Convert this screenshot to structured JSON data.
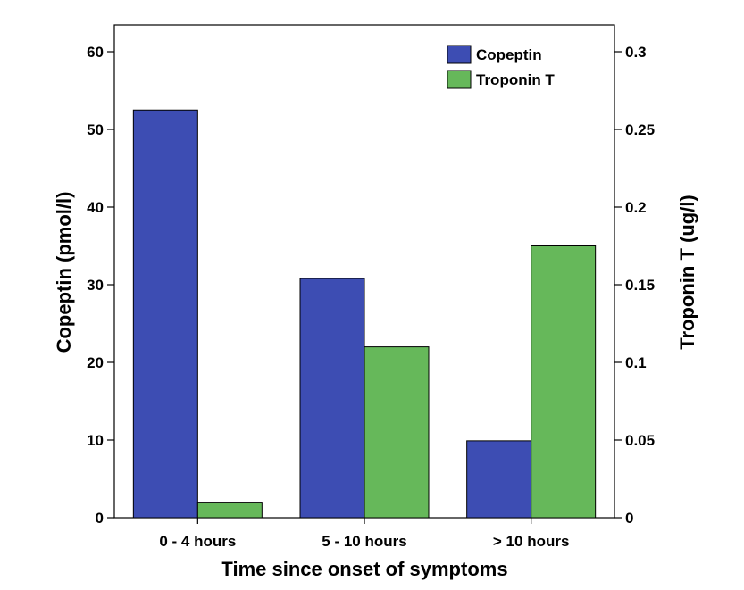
{
  "chart_data": {
    "type": "bar",
    "title": "",
    "categories": [
      "0 - 4 hours",
      "5 - 10 hours",
      "> 10 hours"
    ],
    "xlabel": "Time since onset of symptoms",
    "series": [
      {
        "name": "Copeptin",
        "axis": "left",
        "color": "#3d4db3",
        "values": [
          52.5,
          30.8,
          9.9
        ]
      },
      {
        "name": "Troponin T",
        "axis": "right",
        "color": "#66b85a",
        "values": [
          0.01,
          0.11,
          0.175
        ]
      }
    ],
    "y_left": {
      "label": "Copeptin (pmol/l)",
      "range": [
        0,
        60
      ],
      "ticks": [
        "0",
        "10",
        "20",
        "30",
        "40",
        "50",
        "60"
      ]
    },
    "y_right": {
      "label": "Troponin T (ug/l)",
      "range": [
        0,
        0.3
      ],
      "ticks": [
        "0",
        "0.05",
        "0.1",
        "0.15",
        "0.2",
        "0.25",
        "0.3"
      ]
    },
    "grid": false,
    "legend": "top-right"
  }
}
